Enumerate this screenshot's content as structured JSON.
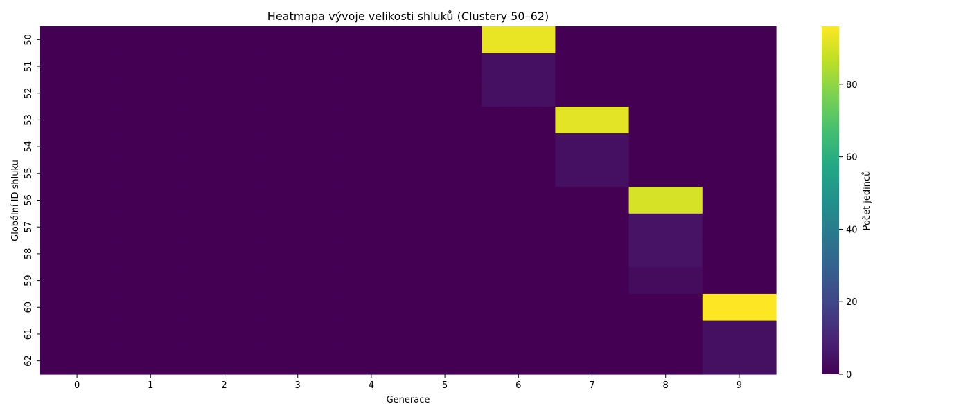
{
  "chart_data": {
    "type": "heatmap",
    "title": "Heatmapa vývoje velikosti shluků (Clustery 50–62)",
    "xlabel": "Generace",
    "ylabel": "Globální ID shluku",
    "colorbar_label": "Počet jedinců",
    "x_categories": [
      "0",
      "1",
      "2",
      "3",
      "4",
      "5",
      "6",
      "7",
      "8",
      "9"
    ],
    "y_categories": [
      "50",
      "51",
      "52",
      "53",
      "54",
      "55",
      "56",
      "57",
      "58",
      "59",
      "60",
      "61",
      "62"
    ],
    "values": [
      [
        0,
        0,
        0,
        0,
        0,
        0,
        93,
        0,
        0,
        0
      ],
      [
        0,
        0,
        0,
        0,
        0,
        0,
        4,
        0,
        0,
        0
      ],
      [
        0,
        0,
        0,
        0,
        0,
        0,
        4,
        0,
        0,
        0
      ],
      [
        0,
        0,
        0,
        0,
        0,
        0,
        0,
        92,
        0,
        0
      ],
      [
        0,
        0,
        0,
        0,
        0,
        0,
        0,
        4,
        0,
        0
      ],
      [
        0,
        0,
        0,
        0,
        0,
        0,
        0,
        4,
        0,
        0
      ],
      [
        0,
        0,
        0,
        0,
        0,
        0,
        0,
        0,
        90,
        0
      ],
      [
        0,
        0,
        0,
        0,
        0,
        0,
        0,
        0,
        5,
        0
      ],
      [
        0,
        0,
        0,
        0,
        0,
        0,
        0,
        0,
        5,
        0
      ],
      [
        0,
        0,
        0,
        0,
        0,
        0,
        0,
        0,
        3,
        0
      ],
      [
        0,
        0,
        0,
        0,
        0,
        0,
        0,
        0,
        0,
        96
      ],
      [
        0,
        0,
        0,
        0,
        0,
        0,
        0,
        0,
        0,
        4
      ],
      [
        0,
        0,
        0,
        0,
        0,
        0,
        0,
        0,
        0,
        4
      ]
    ],
    "vmin": 0,
    "vmax": 96,
    "colormap": "viridis",
    "colorbar_ticks": [
      0,
      20,
      40,
      60,
      80
    ],
    "grid": false
  }
}
